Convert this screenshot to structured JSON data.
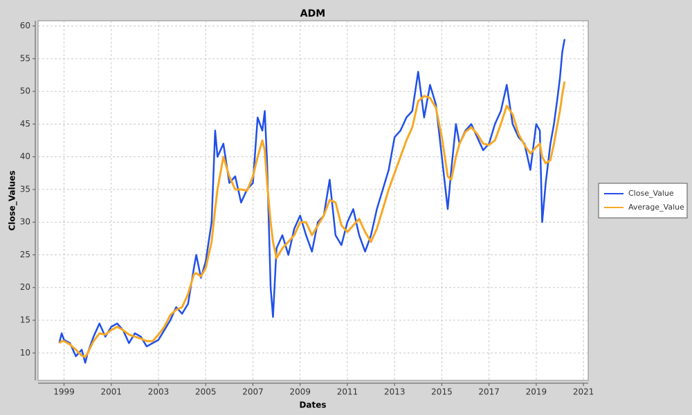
{
  "chart_data": {
    "type": "line",
    "title": "ADM",
    "x_label": "Dates",
    "y_label": "Close_Values",
    "x": [
      1998.8,
      1998.9,
      1999.0,
      1999.25,
      1999.5,
      1999.75,
      1999.9,
      2000.0,
      2000.25,
      2000.5,
      2000.75,
      2001.0,
      2001.25,
      2001.5,
      2001.75,
      2002.0,
      2002.25,
      2002.5,
      2002.75,
      2003.0,
      2003.25,
      2003.5,
      2003.75,
      2004.0,
      2004.25,
      2004.5,
      2004.6,
      2004.8,
      2005.0,
      2005.25,
      2005.4,
      2005.5,
      2005.75,
      2006.0,
      2006.25,
      2006.5,
      2006.75,
      2007.0,
      2007.2,
      2007.4,
      2007.5,
      2007.6,
      2007.75,
      2007.85,
      2008.0,
      2008.25,
      2008.5,
      2008.75,
      2009.0,
      2009.25,
      2009.5,
      2009.75,
      2010.0,
      2010.25,
      2010.5,
      2010.75,
      2011.0,
      2011.25,
      2011.5,
      2011.75,
      2012.0,
      2012.25,
      2012.5,
      2012.75,
      2013.0,
      2013.25,
      2013.5,
      2013.75,
      2014.0,
      2014.25,
      2014.5,
      2014.75,
      2015.0,
      2015.25,
      2015.4,
      2015.6,
      2015.75,
      2016.0,
      2016.25,
      2016.5,
      2016.75,
      2017.0,
      2017.25,
      2017.5,
      2017.75,
      2018.0,
      2018.25,
      2018.5,
      2018.75,
      2019.0,
      2019.15,
      2019.25,
      2019.4,
      2019.6,
      2019.75,
      2019.9,
      2020.0,
      2020.1,
      2020.2
    ],
    "series": [
      {
        "name": "Close_Value",
        "color": "#2050e8",
        "width": 2.5,
        "values": [
          11.5,
          13,
          12,
          11.5,
          9.5,
          10.5,
          8.5,
          10,
          12.5,
          14.5,
          12.5,
          14,
          14.5,
          13.5,
          11.5,
          13,
          12.5,
          11,
          11.5,
          12,
          13.5,
          15,
          17,
          16,
          17.5,
          23,
          25,
          21.5,
          24,
          30,
          44,
          40,
          42,
          36,
          37,
          33,
          35,
          36,
          46,
          44,
          47,
          39,
          20,
          15.5,
          26,
          28,
          25,
          29,
          31,
          28,
          25.5,
          30,
          31,
          36.5,
          28,
          26.5,
          30,
          32,
          28,
          25.5,
          28,
          32,
          35,
          38,
          43,
          44,
          46,
          47,
          53,
          46,
          51,
          48,
          40,
          32,
          38,
          45,
          42,
          44,
          45,
          43,
          41,
          42,
          45,
          47,
          51,
          45,
          43,
          42,
          38,
          45,
          44,
          30,
          36,
          42,
          45,
          49,
          52,
          56,
          58
        ]
      },
      {
        "name": "Average_Value",
        "color": "#f7a823",
        "width": 3,
        "values": [
          11.5,
          11.8,
          11.8,
          11.3,
          10.5,
          9.6,
          9.4,
          10,
          11.8,
          13,
          12.8,
          13.5,
          14,
          13.5,
          12.8,
          12.5,
          12.2,
          11.8,
          11.8,
          12.8,
          14,
          15.8,
          16.6,
          17,
          19,
          22,
          22.2,
          21.7,
          23,
          27,
          32,
          35,
          40,
          37,
          35,
          35,
          34.8,
          37,
          40,
          42.5,
          41,
          36,
          30,
          27,
          24.5,
          26,
          27,
          28,
          30,
          30,
          28,
          29.5,
          31,
          33.4,
          33,
          29.5,
          28.5,
          29.5,
          30.5,
          28.5,
          27,
          29,
          32,
          35,
          37.5,
          40,
          42.5,
          44.5,
          48.5,
          49.3,
          49,
          47.5,
          43,
          37,
          36.5,
          40,
          42,
          43.8,
          44.5,
          43.5,
          42,
          41.8,
          42.5,
          45,
          47.8,
          46.5,
          43.5,
          41.8,
          40.5,
          41.5,
          42,
          40,
          39,
          39.5,
          42,
          45,
          47,
          49.5,
          51.5
        ]
      }
    ],
    "xlim": [
      1997.9,
      2021.2
    ],
    "xticks": [
      1999,
      2001,
      2003,
      2005,
      2007,
      2009,
      2011,
      2013,
      2015,
      2017,
      2019,
      2021
    ],
    "ylim": [
      5.8,
      60.8
    ],
    "yticks": [
      10,
      15,
      20,
      25,
      30,
      35,
      40,
      45,
      50,
      55,
      60
    ],
    "grid": true,
    "legend": "right"
  }
}
